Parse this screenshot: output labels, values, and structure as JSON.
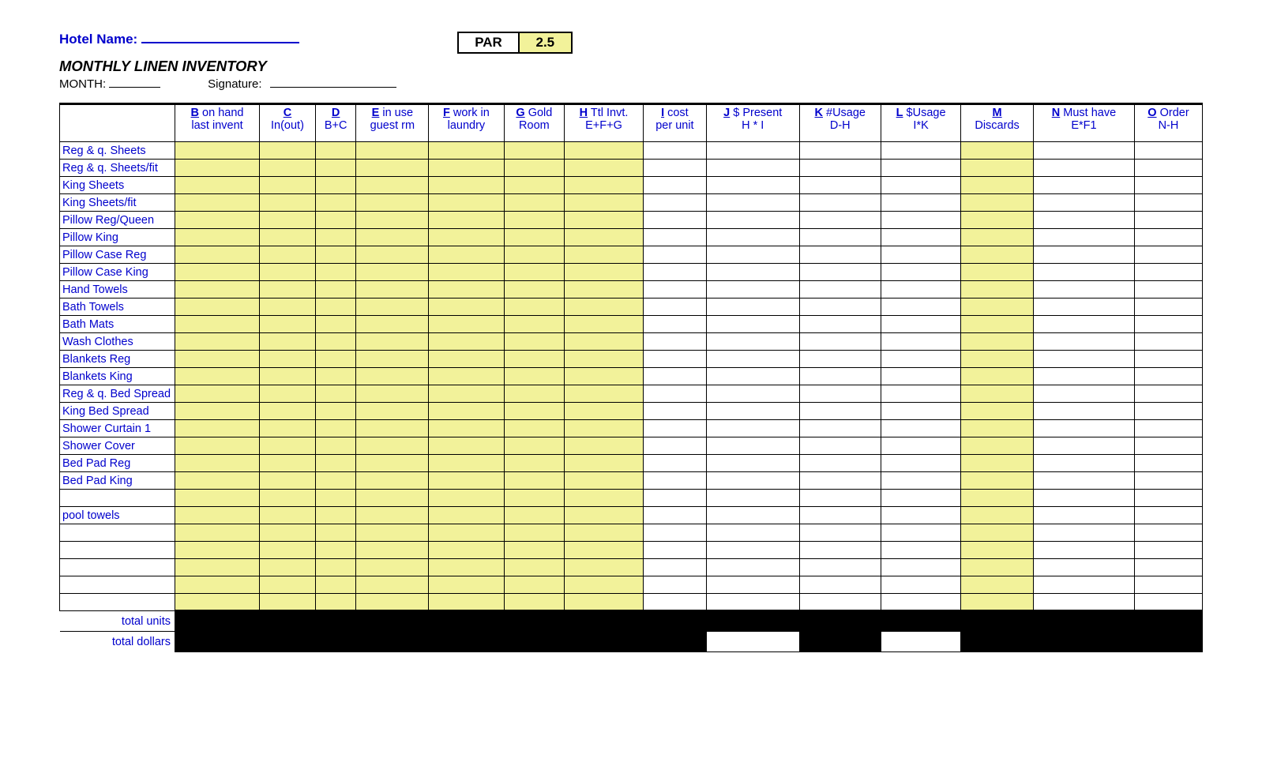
{
  "header": {
    "hotel_label": "Hotel Name:",
    "par_label": "PAR",
    "par_value": "2.5",
    "title": "MONTHLY LINEN INVENTORY",
    "month_label": "MONTH:",
    "signature_label": "Signature:"
  },
  "columns": [
    {
      "letter": "B",
      "line1": " on hand",
      "line2": "last invent"
    },
    {
      "letter": "C",
      "line1": "",
      "line2": "In(out)"
    },
    {
      "letter": "D",
      "line1": "",
      "line2": "B+C"
    },
    {
      "letter": "E",
      "line1": " in use",
      "line2": "guest rm"
    },
    {
      "letter": "F",
      "line1": " work in",
      "line2": "laundry"
    },
    {
      "letter": "G",
      "line1": " Gold",
      "line2": "Room"
    },
    {
      "letter": "H",
      "line1": " Ttl Invt.",
      "line2": "E+F+G"
    },
    {
      "letter": "I",
      "line1": " cost",
      "line2": "per unit"
    },
    {
      "letter": "J",
      "line1": " $ Present",
      "line2": "H * I"
    },
    {
      "letter": "K",
      "line1": " #Usage",
      "line2": "D-H"
    },
    {
      "letter": "L",
      "line1": " $Usage",
      "line2": "I*K"
    },
    {
      "letter": "M",
      "line1": "",
      "line2": "Discards"
    },
    {
      "letter": "N",
      "line1": " Must have",
      "line2": "E*F1"
    },
    {
      "letter": "O",
      "line1": " Order",
      "line2": "N-H"
    }
  ],
  "yellow_cols": [
    0,
    1,
    2,
    3,
    4,
    5,
    6,
    11
  ],
  "rows": [
    "Reg & q. Sheets",
    "Reg & q.  Sheets/fit",
    "King Sheets",
    "King Sheets/fit",
    "Pillow Reg/Queen",
    "Pillow King",
    "Pillow Case Reg",
    "Pillow Case King",
    "Hand Towels",
    "Bath Towels",
    "Bath Mats",
    "Wash Clothes",
    "Blankets Reg",
    "Blankets King",
    "Reg & q. Bed Spread",
    "King Bed Spread",
    "Shower Curtain 1",
    "Shower Cover",
    "Bed Pad  Reg",
    "Bed Pad King",
    "",
    "pool towels",
    "",
    "",
    "",
    "",
    ""
  ],
  "totals": {
    "units_label": "total units",
    "dollars_label": "total dollars",
    "units_white_cols": [],
    "dollars_white_cols": [
      8,
      10
    ]
  },
  "colors": {
    "accent": "#0000cc",
    "yellow": "#f2f29a"
  }
}
